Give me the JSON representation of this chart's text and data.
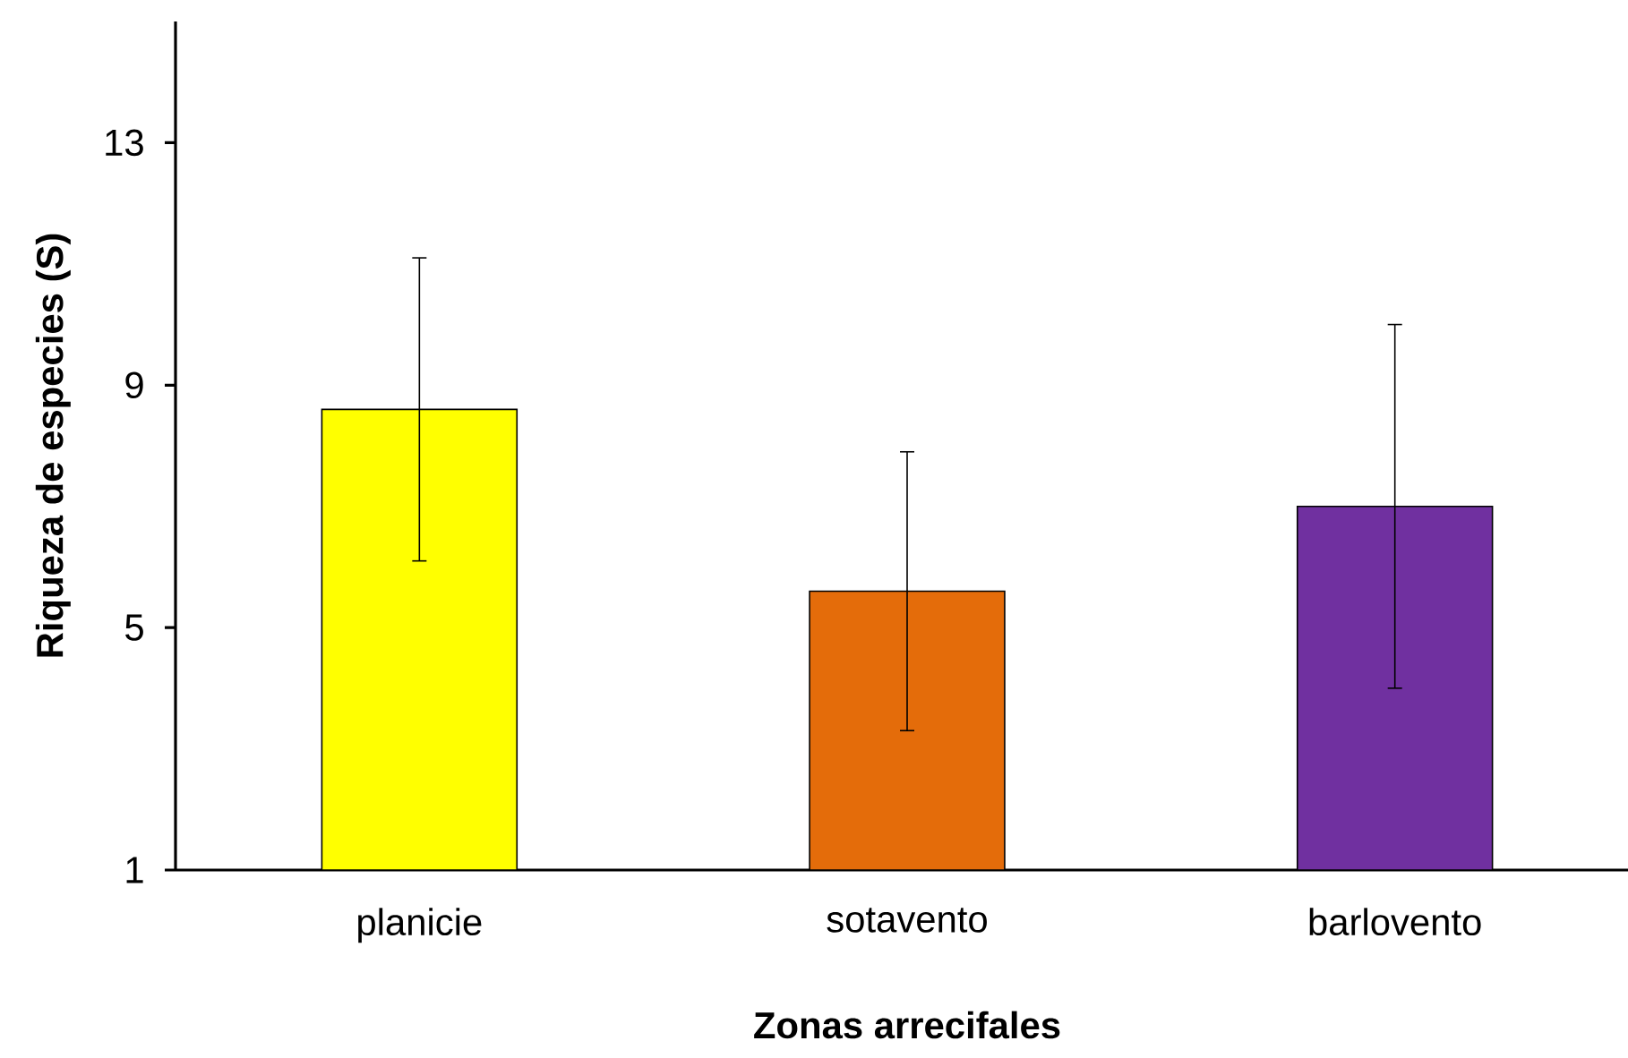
{
  "chart_data": {
    "type": "bar",
    "xlabel": "Zonas arrecifales",
    "ylabel": "Riqueza de especies (S)",
    "categories": [
      "planicie",
      "sotavento",
      "barlovento"
    ],
    "values": [
      8.6,
      5.6,
      7.0
    ],
    "errors": [
      2.5,
      2.3,
      3.0
    ],
    "colors": [
      "#ffff00",
      "#e46c0a",
      "#7030a0"
    ],
    "ylim": [
      1,
      15
    ],
    "yticks": [
      1,
      5,
      9,
      13
    ],
    "grid": false
  }
}
